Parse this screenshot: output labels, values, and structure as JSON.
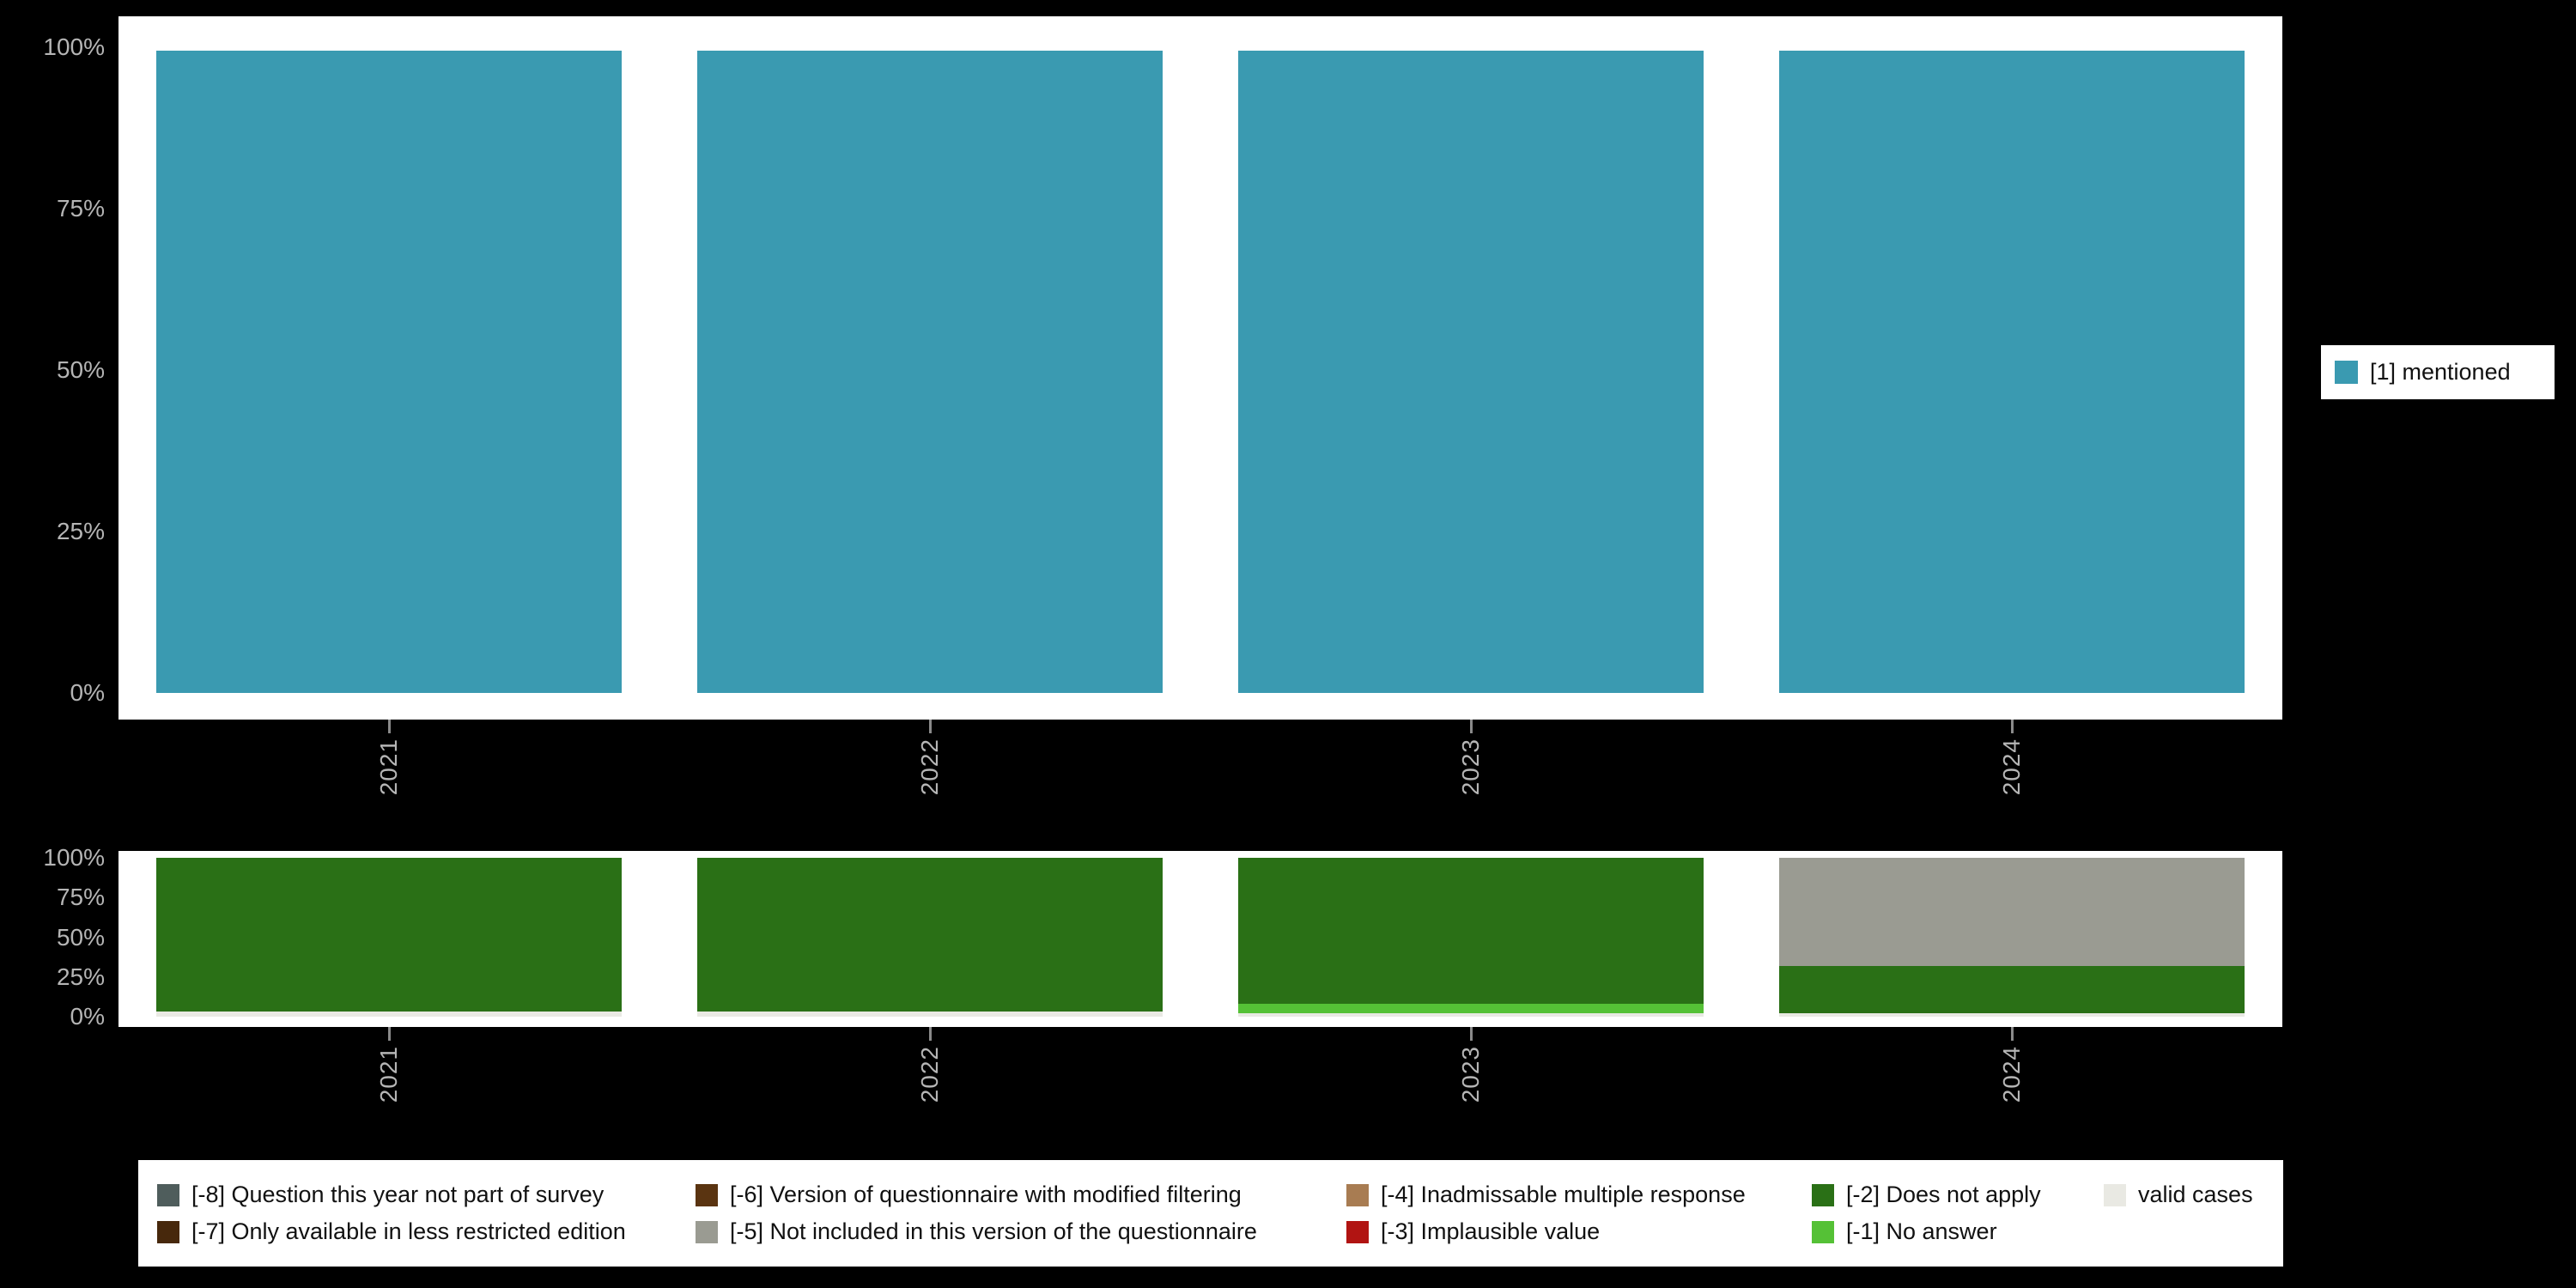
{
  "background_color": "#000000",
  "axis_text_color": "#b5b5b5",
  "chart_data": [
    {
      "type": "bar",
      "title": "",
      "xlabel": "",
      "ylabel": "",
      "categories": [
        "2021",
        "2022",
        "2023",
        "2024"
      ],
      "series": [
        {
          "name": "[1] mentioned",
          "color": "#3a9ab1",
          "values": [
            99.5,
            99.5,
            99.5,
            99.5
          ]
        }
      ],
      "y_ticks": [
        "100%",
        "75%",
        "50%",
        "25%",
        "0%"
      ],
      "ylim": [
        0,
        100
      ],
      "grid": false,
      "legend_position": "right",
      "legend": {
        "label": "[1] mentioned",
        "color": "#3a9ab1"
      }
    },
    {
      "type": "bar",
      "stacked": true,
      "title": "",
      "xlabel": "",
      "ylabel": "",
      "categories": [
        "2021",
        "2022",
        "2023",
        "2024"
      ],
      "y_ticks": [
        "100%",
        "75%",
        "50%",
        "25%",
        "0%"
      ],
      "ylim": [
        0,
        100
      ],
      "grid": false,
      "legend_position": "bottom",
      "series_bottom_to_top": [
        {
          "name": "valid cases",
          "color": "#e9e9e3",
          "values": [
            3,
            3,
            2,
            2
          ]
        },
        {
          "name": "[-1] No answer",
          "color": "#55c136",
          "values": [
            0,
            0,
            6,
            0
          ]
        },
        {
          "name": "[-2] Does not apply",
          "color": "#2a7016",
          "values": [
            97,
            97,
            92,
            30
          ]
        },
        {
          "name": "[-5] Not included in this version of the questionnaire",
          "color": "#9a9b92",
          "values": [
            0,
            0,
            0,
            68
          ]
        }
      ]
    }
  ],
  "missing_values_legend": {
    "rows": [
      [
        {
          "label": "[-8] Question this year not part of survey",
          "color": "#4f5d5c"
        },
        {
          "label": "[-6] Version of questionnaire with modified filtering",
          "color": "#5a3411"
        },
        {
          "label": "[-4] Inadmissable multiple response",
          "color": "#a87c52"
        },
        {
          "label": "[-2] Does not apply",
          "color": "#2a7016"
        },
        {
          "label": "valid cases",
          "color": "#e9e9e3"
        }
      ],
      [
        {
          "label": "[-7] Only available in less restricted edition",
          "color": "#47280c"
        },
        {
          "label": "[-5] Not included in this version of the questionnaire",
          "color": "#9a9b92"
        },
        {
          "label": "[-3] Implausible value",
          "color": "#b11412"
        },
        {
          "label": "[-1] No answer",
          "color": "#55c136"
        }
      ]
    ]
  }
}
